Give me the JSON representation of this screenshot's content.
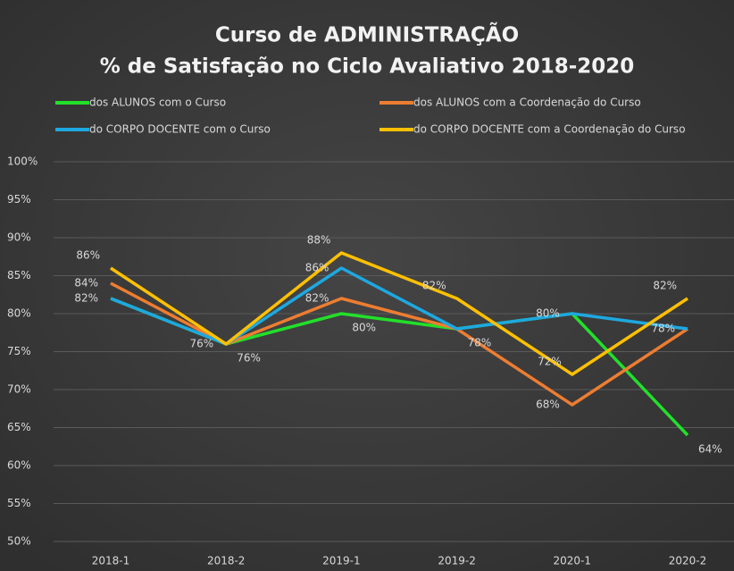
{
  "chart_data": {
    "type": "line",
    "title": "Curso de ADMINISTRAÇÃO",
    "subtitle": "% de Satisfação no Ciclo Avaliativo 2018-2020",
    "categories": [
      "2018-1",
      "2018-2",
      "2019-1",
      "2019-2",
      "2020-1",
      "2020-2"
    ],
    "series": [
      {
        "name": "dos ALUNOS com o Curso",
        "color": "#22e02a",
        "values": [
          82,
          76,
          80,
          78,
          80,
          64
        ],
        "value_labels": [
          null,
          "76%",
          "80%",
          "78%",
          null,
          "64%"
        ]
      },
      {
        "name": "dos ALUNOS com a Coordenação do Curso",
        "color": "#ed7d31",
        "values": [
          84,
          76,
          82,
          78,
          68,
          78
        ],
        "value_labels": [
          "84%",
          "76%",
          "82%",
          null,
          "68%",
          "78%"
        ]
      },
      {
        "name": "do CORPO DOCENTE com o Curso",
        "color": "#1ea8e0",
        "values": [
          82,
          76,
          86,
          78,
          80,
          78
        ],
        "value_labels": [
          "82%",
          null,
          "86%",
          null,
          "80%",
          null
        ]
      },
      {
        "name": "do CORPO DOCENTE com a Coordenação do Curso",
        "color": "#ffc000",
        "values": [
          86,
          76,
          88,
          82,
          72,
          82
        ],
        "value_labels": [
          "86%",
          null,
          "88%",
          "82%",
          "72%",
          "82%"
        ]
      }
    ],
    "ylim": [
      50,
      100
    ],
    "yticks": [
      {
        "value": 50,
        "label": "50%"
      },
      {
        "value": 55,
        "label": "55%"
      },
      {
        "value": 60,
        "label": "60%"
      },
      {
        "value": 65,
        "label": "65%"
      },
      {
        "value": 70,
        "label": "70%"
      },
      {
        "value": 75,
        "label": "75%"
      },
      {
        "value": 80,
        "label": "80%"
      },
      {
        "value": 85,
        "label": "85%"
      },
      {
        "value": 90,
        "label": "90%"
      },
      {
        "value": 95,
        "label": "95%"
      },
      {
        "value": 100,
        "label": "100%"
      }
    ],
    "grid": true
  }
}
